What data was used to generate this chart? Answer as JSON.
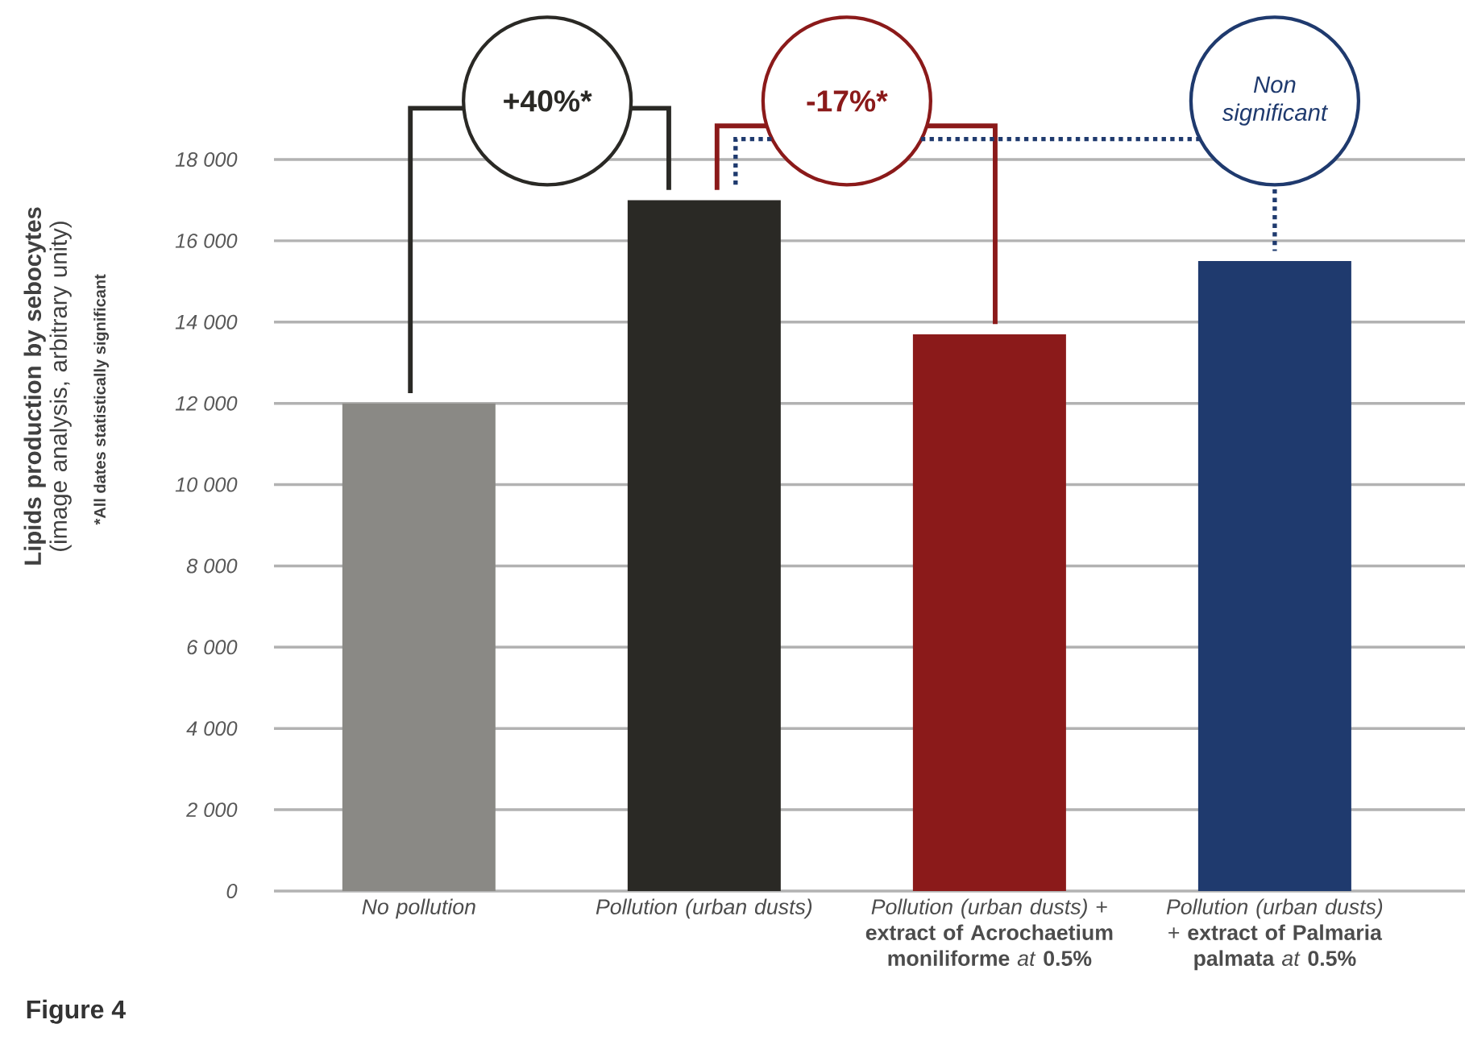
{
  "chart_data": {
    "type": "bar",
    "categories": [
      "*No pollution*",
      "*Pollution (urban dusts)*",
      "*Pollution (urban dusts)* + **extract of Acrochaetium moniliforme** *at* **0.5%**",
      "*Pollution (urban dusts)* + **extract of Palmaria palmata** *at* **0.5%**"
    ],
    "values": [
      12000,
      17000,
      13700,
      15500
    ],
    "colors": [
      "#8a8985",
      "#2a2925",
      "#8b1a1a",
      "#1f3a6e"
    ],
    "ylabel": "**Lipids production by sebocytes** (image analysis, arbitrary unity)",
    "ylim": [
      0,
      18000
    ],
    "yticks": [
      0,
      {
        "value": 2000,
        "label": "2 000"
      },
      {
        "value": 4000,
        "label": "4 000"
      },
      {
        "value": 6000,
        "label": "6 000"
      },
      {
        "value": 8000,
        "label": "8 000"
      },
      {
        "value": 10000,
        "label": "10 000"
      },
      {
        "value": 12000,
        "label": "12 000"
      },
      {
        "value": 14000,
        "label": "14 000"
      },
      {
        "value": 16000,
        "label": "16 000"
      },
      {
        "value": 18000,
        "label": "18 000"
      }
    ],
    "grid": "y",
    "annotations": [
      "+40%*",
      "-17%*",
      "Non significant",
      "*All dates statistically significant",
      "Figure 4"
    ]
  }
}
